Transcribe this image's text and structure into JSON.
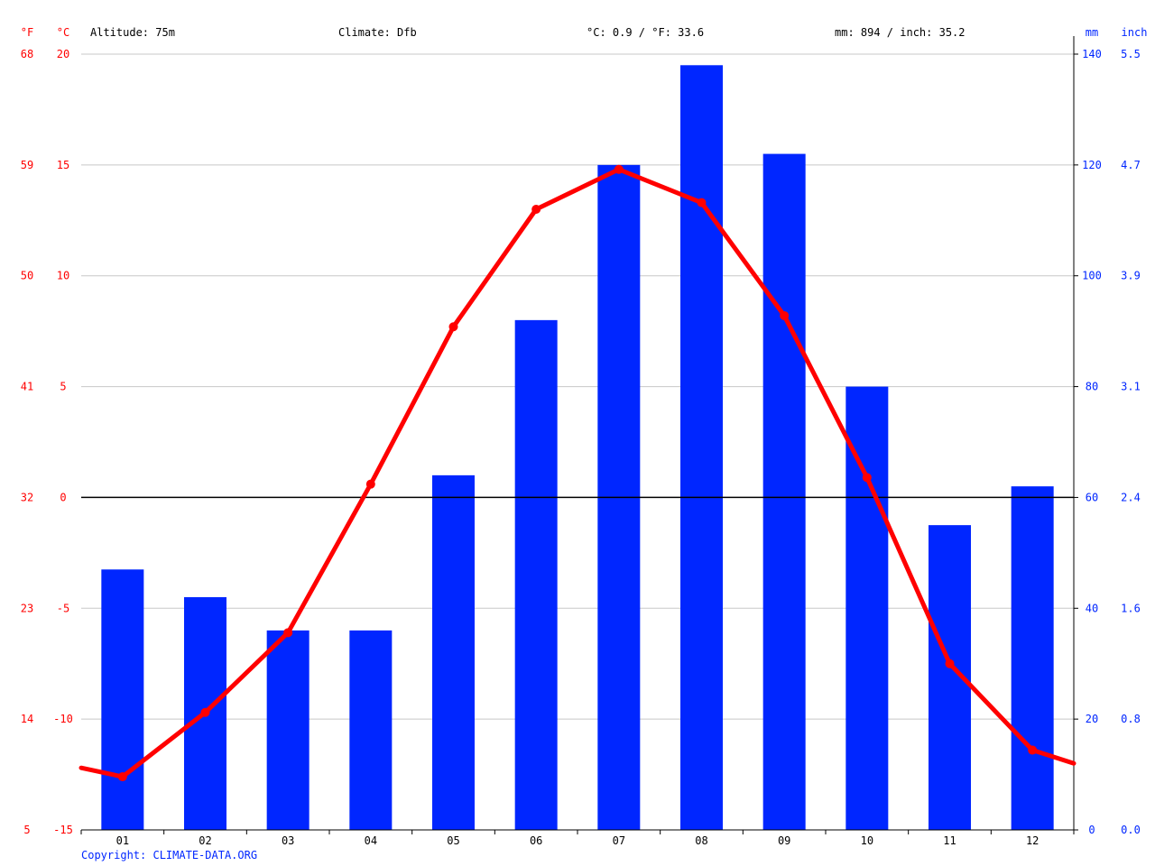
{
  "header": {
    "unit_f": "°F",
    "unit_c": "°C",
    "altitude": "Altitude: 75m",
    "climate": "Climate: Dfb",
    "temp_avg": "°C: 0.9 / °F: 33.6",
    "precip_total": "mm: 894 / inch: 35.2",
    "unit_mm": "mm",
    "unit_inch": "inch"
  },
  "copyright": "Copyright: CLIMATE-DATA.ORG",
  "colors": {
    "temperature": "#ff0000",
    "precipitation": "#0026ff",
    "grid": "#c8c8c8",
    "zero_line": "#000000"
  },
  "chart_data": {
    "type": "bar+line",
    "categories": [
      "01",
      "02",
      "03",
      "04",
      "05",
      "06",
      "07",
      "08",
      "09",
      "10",
      "11",
      "12"
    ],
    "series": [
      {
        "type": "bar",
        "axis": "right",
        "values": [
          47,
          42,
          36,
          36,
          64,
          92,
          120,
          138,
          122,
          80,
          55,
          62
        ]
      },
      {
        "type": "line",
        "axis": "left",
        "values": [
          -12.6,
          -9.7,
          -6.1,
          0.6,
          7.7,
          13.0,
          14.8,
          13.3,
          8.2,
          0.9,
          -7.5,
          -11.4
        ]
      }
    ],
    "line_edges": {
      "start": -12.2,
      "end": -12.0
    },
    "left_axis_c": {
      "ticks": [
        "-15",
        "-10",
        "-5",
        "0",
        "5",
        "10",
        "15",
        "20"
      ],
      "ylim": [
        -15,
        20
      ]
    },
    "left_axis_f": {
      "ticks": [
        "5",
        "14",
        "23",
        "32",
        "41",
        "50",
        "59",
        "68"
      ]
    },
    "right_axis_mm": {
      "ticks": [
        "0",
        "20",
        "40",
        "60",
        "80",
        "100",
        "120",
        "140"
      ],
      "ylim": [
        0,
        140
      ]
    },
    "right_axis_inch": {
      "ticks": [
        "0.0",
        "0.8",
        "1.6",
        "2.4",
        "3.1",
        "3.9",
        "4.7",
        "5.5"
      ]
    },
    "grid": true
  }
}
